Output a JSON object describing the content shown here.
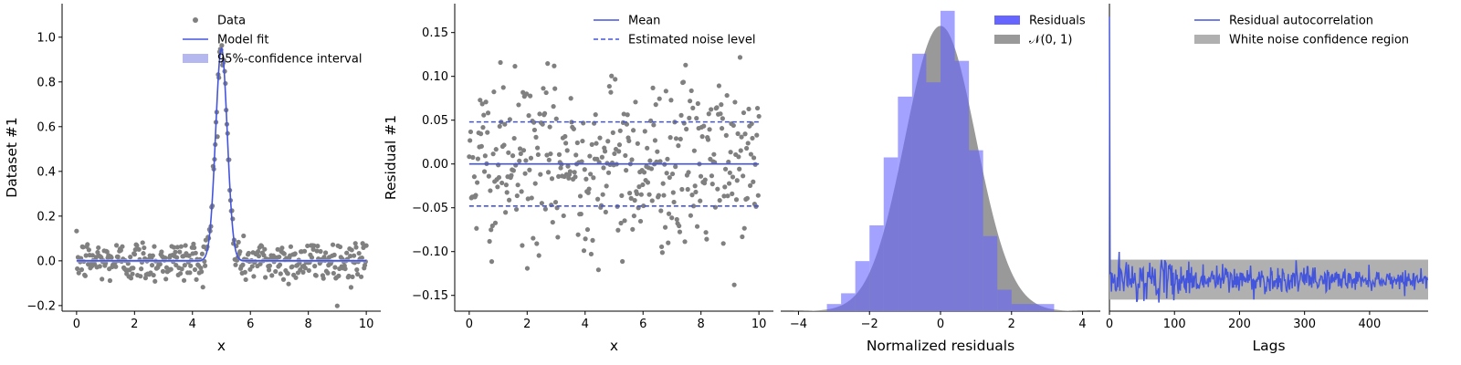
{
  "figure": {
    "colors": {
      "data": "#808080",
      "fit": "#4455dd",
      "ci": "#b4b8ee",
      "hist": "#6666ff",
      "normal": "#999999",
      "band": "#b0b0b0"
    }
  },
  "chart_data": [
    {
      "type": "scatter",
      "xlabel": "x",
      "ylabel": "Dataset #1",
      "xlim": [
        -0.5,
        10.5
      ],
      "ylim": [
        -0.225,
        1.15
      ],
      "xticks": [
        0,
        2,
        4,
        6,
        8,
        10
      ],
      "yticks": [
        -0.2,
        0.0,
        0.2,
        0.4,
        0.6,
        0.8,
        1.0
      ],
      "xtick_labels": [
        "0",
        "2",
        "4",
        "6",
        "8",
        "10"
      ],
      "ytick_labels": [
        "−0.2",
        "0.0",
        "0.2",
        "0.4",
        "0.6",
        "0.8",
        "1.0"
      ],
      "legend": [
        "Data",
        "Model fit",
        "95%-confidence interval"
      ],
      "legend_position": "top-right",
      "model": {
        "peak_center": 5.0,
        "peak_amplitude": 0.95,
        "peak_sigma": 0.2,
        "baseline": 0.0
      },
      "noise_sd": 0.048,
      "n_points": 400
    },
    {
      "type": "scatter",
      "xlabel": "x",
      "ylabel": "Residual #1",
      "xlim": [
        -0.5,
        10.5
      ],
      "ylim": [
        -0.168,
        0.183
      ],
      "xticks": [
        0,
        2,
        4,
        6,
        8,
        10
      ],
      "yticks": [
        -0.15,
        -0.1,
        -0.05,
        0.0,
        0.05,
        0.1,
        0.15
      ],
      "xtick_labels": [
        "0",
        "2",
        "4",
        "6",
        "8",
        "10"
      ],
      "ytick_labels": [
        "−0.15",
        "−0.10",
        "−0.05",
        "0.00",
        "0.05",
        "0.10",
        "0.15"
      ],
      "legend": [
        "Mean",
        "Estimated noise level"
      ],
      "legend_position": "top-right",
      "mean": 0.0,
      "noise_level": 0.048,
      "n_points": 400
    },
    {
      "type": "bar",
      "xlabel": "Normalized residuals",
      "ylabel": "",
      "xlim": [
        -4.5,
        4.5
      ],
      "ylim": [
        0,
        0.43
      ],
      "xticks": [
        -4,
        -2,
        0,
        2,
        4
      ],
      "xtick_labels": [
        "−4",
        "−2",
        "0",
        "2",
        "4"
      ],
      "legend": [
        "Residuals",
        "𝒩(0, 1)"
      ],
      "legend_position": "top-right",
      "bin_edges": [
        -3.6,
        -3.2,
        -2.8,
        -2.4,
        -2.0,
        -1.6,
        -1.2,
        -0.8,
        -0.4,
        0.0,
        0.4,
        0.8,
        1.2,
        1.6,
        2.0,
        2.4,
        2.8,
        3.2,
        3.6
      ],
      "values": [
        0.0,
        0.01,
        0.025,
        0.07,
        0.12,
        0.215,
        0.3,
        0.36,
        0.32,
        0.42,
        0.35,
        0.225,
        0.105,
        0.03,
        0.01,
        0.01,
        0.01,
        0.0
      ],
      "normal_pdf": {
        "mu": 0,
        "sigma": 1
      }
    },
    {
      "type": "line",
      "xlabel": "Lags",
      "ylabel": "",
      "xlim": [
        0,
        490
      ],
      "ylim": [
        -0.12,
        1.05
      ],
      "xticks": [
        0,
        100,
        200,
        300,
        400
      ],
      "xtick_labels": [
        "0",
        "100",
        "200",
        "300",
        "400"
      ],
      "legend": [
        "Residual autocorrelation",
        "White noise confidence region"
      ],
      "legend_position": "top-right",
      "confidence_band": [
        -0.076,
        0.076
      ],
      "autocorrelation_lag0": 1.0,
      "n_lags": 490
    }
  ]
}
